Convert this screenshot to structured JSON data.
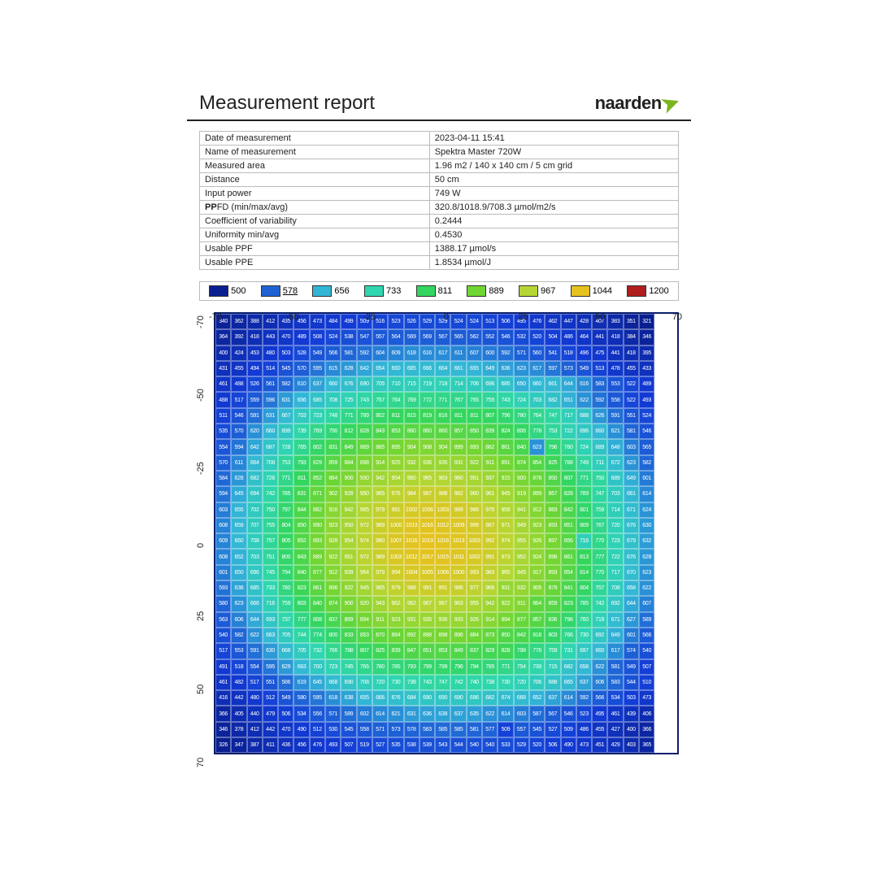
{
  "title": "Measurement report",
  "logo_text": "naarden",
  "meta_rows": [
    [
      "Date of measurement",
      "2023-04-11 15:41"
    ],
    [
      "Name of measurement",
      "Spektra   Master 720W"
    ],
    [
      "Measured area",
      "1.96 m2 /  140 x 140 cm / 5 cm grid"
    ],
    [
      "Distance",
      "50 cm"
    ],
    [
      "Input power",
      "749 W"
    ],
    [
      "PPFD (min/max/avg)",
      "320.8/1018.9/708.3 µmol/m2/s"
    ],
    [
      "Coefficient of variability",
      "0.2444"
    ],
    [
      "Uniformity min/avg",
      "0.4530"
    ],
    [
      "Usable PPF",
      "1388.17 µmol/s"
    ],
    [
      "Usable PPE",
      "1.8534 µmol/J"
    ]
  ],
  "meta_bold_prefix": {
    "5": "PP"
  },
  "legend": {
    "stops": [
      {
        "v": 500,
        "c": "#0a1f8f"
      },
      {
        "v": 578,
        "c": "#1e62d6",
        "u": true
      },
      {
        "v": 656,
        "c": "#33b6d6"
      },
      {
        "v": 733,
        "c": "#2fd6b0"
      },
      {
        "v": 811,
        "c": "#33d65e"
      },
      {
        "v": 889,
        "c": "#6fd633"
      },
      {
        "v": 967,
        "c": "#b6d633"
      },
      {
        "v": 1044,
        "c": "#e6c21e"
      },
      {
        "v": 1200,
        "c": "#b01e1e"
      }
    ]
  },
  "axis": {
    "x": [
      "-70",
      "-50",
      "-25",
      "0",
      "25",
      "50",
      "70"
    ],
    "y": [
      "-70",
      "-50",
      "-25",
      "0",
      "25",
      "50",
      "70"
    ]
  },
  "heat": {
    "type": "heatmap",
    "cols": 28,
    "rows": 28,
    "cell_border": "rgba(255,255,255,0.35)",
    "outer_border": "#0a1f6b",
    "font_color": "#ffffff",
    "font_size": 7,
    "color_stops": [
      [
        320,
        "#0a1f8f"
      ],
      [
        500,
        "#123bd6"
      ],
      [
        578,
        "#1e62d6"
      ],
      [
        656,
        "#33b6d6"
      ],
      [
        733,
        "#2fd6b0"
      ],
      [
        811,
        "#33d65e"
      ],
      [
        889,
        "#6fd633"
      ],
      [
        967,
        "#b6d633"
      ],
      [
        1020,
        "#e6c21e"
      ]
    ],
    "data": [
      [
        340,
        362,
        388,
        412,
        435,
        456,
        473,
        484,
        499,
        509,
        516,
        523,
        526,
        529,
        529,
        524,
        524,
        513,
        506,
        495,
        476,
        462,
        447,
        428,
        407,
        383,
        351,
        321
      ],
      [
        364,
        392,
        418,
        443,
        470,
        489,
        508,
        524,
        538,
        547,
        557,
        564,
        569,
        569,
        567,
        565,
        562,
        552,
        546,
        532,
        520,
        504,
        486,
        464,
        441,
        418,
        384,
        346
      ],
      [
        400,
        424,
        453,
        480,
        503,
        528,
        549,
        566,
        581,
        592,
        604,
        609,
        618,
        616,
        617,
        611,
        607,
        600,
        592,
        571,
        560,
        541,
        518,
        496,
        475,
        441,
        418,
        395
      ],
      [
        431,
        455,
        494,
        514,
        545,
        570,
        595,
        615,
        628,
        642,
        654,
        660,
        665,
        666,
        664,
        661,
        655,
        649,
        636,
        623,
        617,
        597,
        573,
        549,
        513,
        478,
        455,
        433
      ],
      [
        461,
        488,
        526,
        561,
        582,
        610,
        637,
        660,
        676,
        690,
        705,
        710,
        715,
        719,
        718,
        714,
        706,
        696,
        685,
        650,
        660,
        661,
        644,
        616,
        583,
        553,
        522,
        489
      ],
      [
        488,
        517,
        559,
        596,
        631,
        656,
        685,
        708,
        725,
        743,
        757,
        764,
        769,
        772,
        771,
        767,
        765,
        755,
        743,
        724,
        703,
        682,
        651,
        622,
        592,
        558,
        522,
        493
      ],
      [
        511,
        546,
        591,
        631,
        667,
        703,
        723,
        748,
        771,
        789,
        802,
        811,
        815,
        819,
        816,
        811,
        811,
        807,
        796,
        780,
        764,
        747,
        717,
        688,
        626,
        591,
        551,
        524
      ],
      [
        535,
        570,
        620,
        660,
        699,
        739,
        769,
        790,
        812,
        828,
        843,
        853,
        860,
        860,
        860,
        857,
        850,
        839,
        824,
        806,
        778,
        753,
        722,
        696,
        660,
        621,
        581,
        546
      ],
      [
        554,
        594,
        642,
        687,
        728,
        765,
        802,
        831,
        849,
        869,
        885,
        895,
        904,
        908,
        904,
        899,
        893,
        882,
        861,
        840,
        623,
        796,
        760,
        724,
        689,
        648,
        603,
        565
      ],
      [
        570,
        611,
        664,
        708,
        753,
        793,
        829,
        859,
        884,
        898,
        914,
        925,
        932,
        936,
        935,
        931,
        922,
        911,
        891,
        874,
        854,
        825,
        788,
        749,
        711,
        672,
        623,
        582
      ],
      [
        584,
        628,
        682,
        728,
        771,
        811,
        852,
        884,
        900,
        930,
        942,
        954,
        960,
        965,
        963,
        960,
        951,
        937,
        915,
        900,
        878,
        850,
        807,
        771,
        750,
        689,
        649,
        601
      ],
      [
        594,
        645,
        694,
        742,
        785,
        831,
        871,
        902,
        928,
        950,
        965,
        976,
        984,
        987,
        988,
        982,
        960,
        961,
        945,
        919,
        899,
        867,
        828,
        789,
        747,
        703,
        661,
        614
      ],
      [
        603,
        655,
        702,
        750,
        797,
        844,
        882,
        916,
        942,
        965,
        979,
        991,
        1002,
        1006,
        1003,
        999,
        988,
        976,
        959,
        941,
        912,
        883,
        842,
        801,
        759,
        714,
        671,
        624
      ],
      [
        608,
        659,
        707,
        755,
        804,
        850,
        890,
        923,
        950,
        972,
        989,
        1000,
        1013,
        1016,
        1012,
        1009,
        999,
        987,
        971,
        949,
        923,
        893,
        851,
        809,
        767,
        720,
        676,
        630
      ],
      [
        609,
        660,
        708,
        757,
        805,
        852,
        893,
        928,
        954,
        974,
        990,
        1007,
        1016,
        1019,
        1016,
        1013,
        1003,
        992,
        974,
        955,
        926,
        897,
        856,
        716,
        770,
        723,
        679,
        632
      ],
      [
        608,
        652,
        703,
        751,
        800,
        843,
        889,
        922,
        951,
        972,
        989,
        1003,
        1012,
        1017,
        1015,
        1011,
        1002,
        991,
        973,
        952,
        924,
        896,
        861,
        813,
        777,
        722,
        676,
        628
      ],
      [
        601,
        650,
        696,
        745,
        794,
        840,
        877,
        912,
        939,
        964,
        979,
        994,
        1004,
        1005,
        1006,
        1000,
        993,
        983,
        965,
        945,
        917,
        893,
        854,
        814,
        770,
        717,
        670,
        623
      ],
      [
        593,
        638,
        685,
        733,
        780,
        823,
        861,
        896,
        922,
        945,
        965,
        979,
        988,
        991,
        991,
        986,
        977,
        966,
        931,
        932,
        905,
        879,
        841,
        804,
        757,
        708,
        658,
        622
      ],
      [
        580,
        623,
        666,
        716,
        759,
        803,
        840,
        874,
        900,
        920,
        943,
        962,
        962,
        967,
        967,
        963,
        955,
        942,
        922,
        911,
        864,
        859,
        823,
        785,
        742,
        692,
        644,
        607
      ],
      [
        563,
        606,
        644,
        693,
        737,
        777,
        808,
        837,
        869,
        894,
        911,
        923,
        931,
        935,
        936,
        933,
        926,
        914,
        894,
        877,
        857,
        836,
        798,
        760,
        719,
        671,
        627,
        589
      ],
      [
        540,
        582,
        622,
        663,
        705,
        744,
        774,
        800,
        833,
        853,
        870,
        884,
        892,
        898,
        898,
        896,
        884,
        873,
        850,
        842,
        818,
        803,
        766,
        730,
        692,
        649,
        601,
        566
      ],
      [
        517,
        553,
        591,
        630,
        668,
        705,
        732,
        766,
        788,
        807,
        825,
        839,
        847,
        851,
        853,
        849,
        837,
        829,
        828,
        798,
        776,
        759,
        731,
        697,
        660,
        617,
        574,
        540
      ],
      [
        491,
        518,
        554,
        595,
        629,
        663,
        700,
        723,
        745,
        766,
        780,
        785,
        793,
        799,
        799,
        796,
        794,
        785,
        771,
        754,
        739,
        715,
        682,
        658,
        622,
        581,
        549,
        507
      ],
      [
        461,
        482,
        517,
        551,
        586,
        619,
        645,
        668,
        690,
        708,
        720,
        730,
        738,
        743,
        747,
        742,
        740,
        738,
        730,
        720,
        706,
        688,
        665,
        637,
        606,
        583,
        544,
        510
      ],
      [
        416,
        442,
        480,
        512,
        549,
        580,
        595,
        618,
        638,
        655,
        666,
        676,
        684,
        690,
        690,
        690,
        696,
        682,
        674,
        668,
        652,
        637,
        614,
        592,
        566,
        534,
        503,
        473
      ],
      [
        366,
        405,
        440,
        479,
        506,
        534,
        556,
        571,
        589,
        602,
        614,
        621,
        631,
        636,
        638,
        637,
        635,
        622,
        614,
        603,
        587,
        567,
        546,
        523,
        495,
        461,
        439,
        406
      ],
      [
        346,
        378,
        412,
        442,
        470,
        490,
        512,
        530,
        545,
        558,
        571,
        573,
        578,
        583,
        585,
        585,
        581,
        577,
        509,
        557,
        545,
        527,
        509,
        486,
        455,
        427,
        400,
        366
      ],
      [
        326,
        347,
        387,
        411,
        436,
        456,
        476,
        493,
        507,
        519,
        527,
        535,
        538,
        539,
        543,
        544,
        540,
        540,
        533,
        529,
        520,
        506,
        490,
        473,
        451,
        429,
        403,
        365
      ]
    ]
  }
}
